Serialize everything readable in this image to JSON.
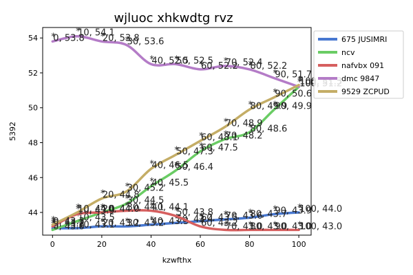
{
  "chart_data": {
    "type": "line",
    "title": "wjluoc xhkwdtg rvz",
    "xlabel": "kzwfthx",
    "ylabel": "5392",
    "xlim": [
      -4,
      105
    ],
    "ylim": [
      42.7,
      54.6
    ],
    "xticks": [
      0,
      20,
      40,
      60,
      80,
      100
    ],
    "yticks": [
      44,
      46,
      48,
      50,
      52,
      54
    ],
    "grid": false,
    "legend_position": "upper-right",
    "series": [
      {
        "name": "675 JUSIMRI",
        "color": "#4878d0",
        "marker_color": "#00ff00",
        "points": [
          [
            0,
            43.1
          ],
          [
            10,
            43.1
          ],
          [
            20,
            43.2
          ],
          [
            30,
            43.2
          ],
          [
            40,
            43.3
          ],
          [
            50,
            43.4
          ],
          [
            60,
            43.5
          ],
          [
            70,
            43.6
          ],
          [
            80,
            43.7
          ],
          [
            90,
            43.9
          ],
          [
            100,
            44.0
          ]
        ],
        "labels": [
          "0, 43.1",
          "10, 43.1",
          "20, 43.2",
          "30, 43.2",
          "40, 43.3",
          "50, 43.4",
          "60, 43.5",
          "70, 43.6",
          "80, 43.7",
          "90, 43.9",
          "100, 44.0"
        ]
      },
      {
        "name": "ncv",
        "color": "#6acc64",
        "marker_color": "#00ff00",
        "points": [
          [
            0,
            43.0
          ],
          [
            10,
            43.5
          ],
          [
            20,
            44.0
          ],
          [
            30,
            44.5
          ],
          [
            40,
            45.5
          ],
          [
            50,
            46.4
          ],
          [
            60,
            47.5
          ],
          [
            70,
            48.2
          ],
          [
            80,
            48.6
          ],
          [
            90,
            49.9
          ],
          [
            100,
            51.2
          ]
        ],
        "labels": [
          "0, 43.0",
          "10, 43.5",
          "20, 44.0",
          "30, 44.5",
          "40, 45.5",
          "50, 46.4",
          "60, 47.5",
          "70, 48.2",
          "80, 48.6",
          "90, 49.9",
          "100, 51.2"
        ]
      },
      {
        "name": "nafvbx 091",
        "color": "#d65f5f",
        "marker_color": "#00ff00",
        "points": [
          [
            0,
            43.2
          ],
          [
            10,
            43.9
          ],
          [
            20,
            44.0
          ],
          [
            30,
            44.1
          ],
          [
            40,
            44.1
          ],
          [
            50,
            43.8
          ],
          [
            60,
            43.2
          ],
          [
            70,
            43.0
          ],
          [
            80,
            43.0
          ],
          [
            90,
            43.0
          ],
          [
            100,
            43.0
          ]
        ],
        "labels": [
          "0, 43.2",
          "10, 43.9",
          "20, 44.0",
          "30, 44.1",
          "40, 44.1",
          "50, 43.8",
          "60, 43.2",
          "70, 43.0",
          "80, 43.0",
          "90, 43.0",
          "100, 43.0"
        ]
      },
      {
        "name": "dmc 9847",
        "color": "#b47cc7",
        "marker_color": "#00ff00",
        "points": [
          [
            0,
            53.8
          ],
          [
            10,
            54.1
          ],
          [
            20,
            53.8
          ],
          [
            30,
            53.6
          ],
          [
            40,
            52.5
          ],
          [
            50,
            52.5
          ],
          [
            60,
            52.2
          ],
          [
            70,
            52.4
          ],
          [
            80,
            52.2
          ],
          [
            90,
            51.7
          ],
          [
            100,
            51.2
          ]
        ],
        "labels": [
          "0, 53.8",
          "10, 54.1",
          "20, 53.8",
          "30, 53.6",
          "40, 52.5",
          "50, 52.5",
          "60, 52.2",
          "70, 52.4",
          "80, 52.2",
          "90, 51.7",
          "100, 51.2"
        ]
      },
      {
        "name": "9529 ZCPUD",
        "color": "#c4ad66",
        "marker_color": "#00ff00",
        "points": [
          [
            0,
            43.3
          ],
          [
            10,
            44.0
          ],
          [
            20,
            44.8
          ],
          [
            30,
            45.2
          ],
          [
            40,
            46.5
          ],
          [
            50,
            47.3
          ],
          [
            60,
            48.1
          ],
          [
            70,
            48.9
          ],
          [
            80,
            49.9
          ],
          [
            90,
            50.6
          ],
          [
            100,
            51.3
          ]
        ],
        "labels": [
          "0, 43.3",
          "10, 44.0",
          "20, 44.8",
          "30, 45.2",
          "40, 46.5",
          "50, 47.3",
          "60, 48.1",
          "70, 48.9",
          "80, 49.9",
          "90, 50.6",
          "100, 51.3"
        ]
      }
    ]
  }
}
